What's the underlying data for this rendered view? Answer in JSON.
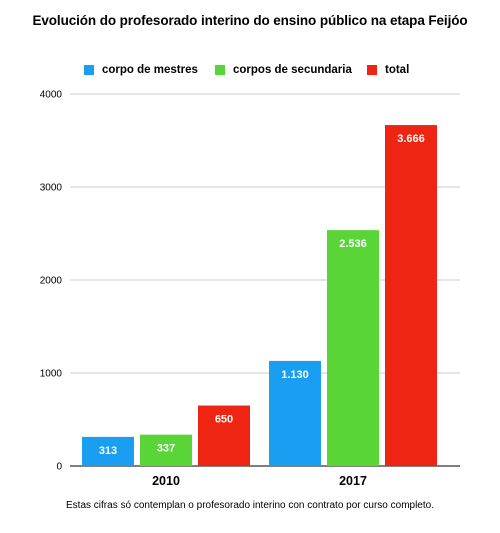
{
  "chart_data": {
    "type": "bar",
    "title": "Evolución do profesorado interino do ensino público na etapa Feijóo",
    "categories": [
      "2010",
      "2017"
    ],
    "series": [
      {
        "name": "corpo de mestres",
        "values": [
          313,
          1130
        ],
        "labels": [
          "313",
          "1.130"
        ],
        "color": "#1a9ef2"
      },
      {
        "name": "corpos de secundaria",
        "values": [
          337,
          2536
        ],
        "labels": [
          "337",
          "2.536"
        ],
        "color": "#59d538"
      },
      {
        "name": "total",
        "values": [
          650,
          3666
        ],
        "labels": [
          "650",
          "3.666"
        ],
        "color": "#ee2512"
      }
    ],
    "y_ticks": [
      "0",
      "1000",
      "2000",
      "3000",
      "4000"
    ],
    "ylim": [
      0,
      4000
    ],
    "grid": true,
    "legend_position": "top-center",
    "xlabel": "",
    "ylabel": ""
  },
  "footnote": "Estas cifras só contemplan o profesorado interino con contrato por curso completo."
}
